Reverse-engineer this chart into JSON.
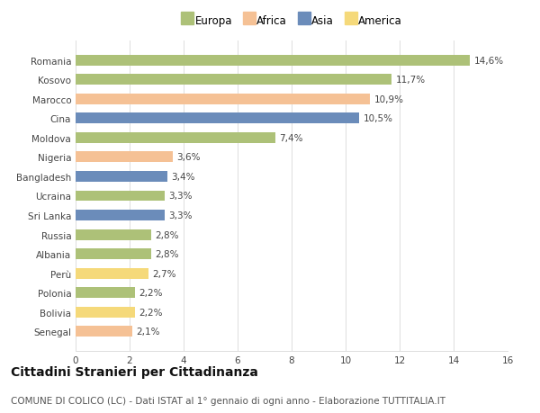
{
  "categories": [
    "Romania",
    "Kosovo",
    "Marocco",
    "Cina",
    "Moldova",
    "Nigeria",
    "Bangladesh",
    "Ucraina",
    "Sri Lanka",
    "Russia",
    "Albania",
    "Perù",
    "Polonia",
    "Bolivia",
    "Senegal"
  ],
  "values": [
    14.6,
    11.7,
    10.9,
    10.5,
    7.4,
    3.6,
    3.4,
    3.3,
    3.3,
    2.8,
    2.8,
    2.7,
    2.2,
    2.2,
    2.1
  ],
  "labels": [
    "14,6%",
    "11,7%",
    "10,9%",
    "10,5%",
    "7,4%",
    "3,6%",
    "3,4%",
    "3,3%",
    "3,3%",
    "2,8%",
    "2,8%",
    "2,7%",
    "2,2%",
    "2,2%",
    "2,1%"
  ],
  "continents": [
    "Europa",
    "Europa",
    "Africa",
    "Asia",
    "Europa",
    "Africa",
    "Asia",
    "Europa",
    "Asia",
    "Europa",
    "Europa",
    "America",
    "Europa",
    "America",
    "Africa"
  ],
  "continent_colors": {
    "Europa": "#adc178",
    "Africa": "#f5c195",
    "Asia": "#6b8cba",
    "America": "#f5d97a"
  },
  "legend_order": [
    "Europa",
    "Africa",
    "Asia",
    "America"
  ],
  "title": "Cittadini Stranieri per Cittadinanza",
  "subtitle": "COMUNE DI COLICO (LC) - Dati ISTAT al 1° gennaio di ogni anno - Elaborazione TUTTITALIA.IT",
  "xlim": [
    0,
    16
  ],
  "xticks": [
    0,
    2,
    4,
    6,
    8,
    10,
    12,
    14,
    16
  ],
  "background_color": "#ffffff",
  "grid_color": "#dddddd",
  "bar_height": 0.55,
  "title_fontsize": 10,
  "subtitle_fontsize": 7.5,
  "label_fontsize": 7.5,
  "tick_fontsize": 7.5,
  "legend_fontsize": 8.5
}
